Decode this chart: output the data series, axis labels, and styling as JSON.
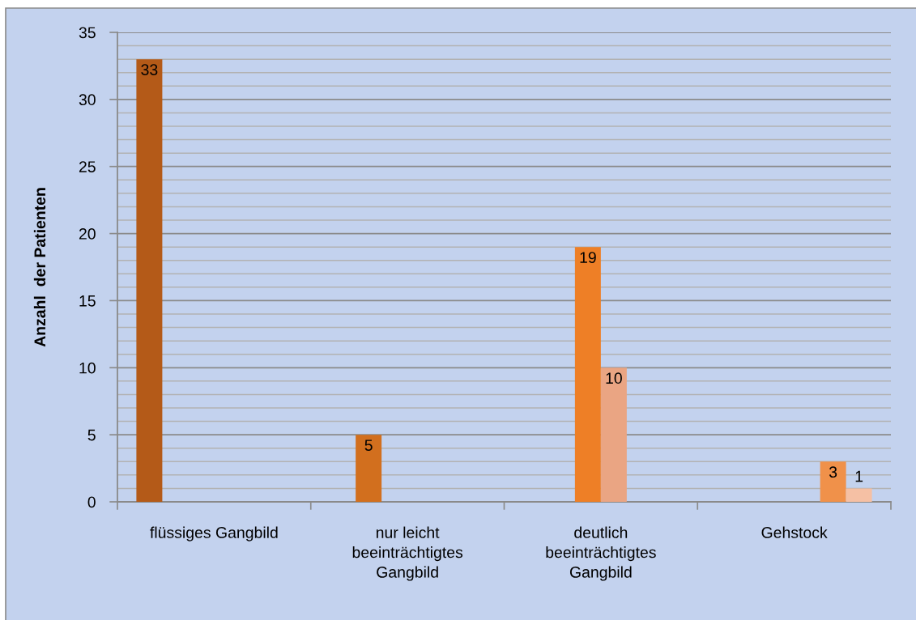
{
  "chart_data": {
    "type": "bar",
    "ylabel": "Anzahl  der Patienten",
    "categories": [
      "flüssiges Gangbild",
      "nur leicht\nbeeinträchtigtes\nGangbild",
      "deutlich\nbeeinträchtigtes\nGangbild",
      "Gehstock"
    ],
    "series": [
      {
        "color": "#b45a18",
        "values": [
          33,
          null,
          null,
          null
        ]
      },
      {
        "color": "#d26f1e",
        "values": [
          null,
          5,
          null,
          null
        ]
      },
      {
        "color": "#ee7f26",
        "values": [
          null,
          null,
          19,
          null
        ]
      },
      {
        "color": "#eaa583",
        "values": [
          null,
          null,
          10,
          null
        ]
      },
      {
        "color": "#f0914a",
        "values": [
          null,
          null,
          null,
          3
        ]
      },
      {
        "color": "#f5c0a4",
        "values": [
          null,
          null,
          null,
          1
        ]
      }
    ],
    "ylim": [
      0,
      35
    ],
    "yticks": [
      0,
      {
        "value": 1,
        "label": null
      },
      {
        "value": 2,
        "label": null
      },
      {
        "value": 3,
        "label": null
      },
      {
        "value": 4,
        "label": null
      },
      5,
      {
        "value": 6,
        "label": null
      },
      {
        "value": 7,
        "label": null
      },
      {
        "value": 8,
        "label": null
      },
      {
        "value": 9,
        "label": null
      },
      10,
      {
        "value": 11,
        "label": null
      },
      {
        "value": 12,
        "label": null
      },
      {
        "value": 13,
        "label": null
      },
      {
        "value": 14,
        "label": null
      },
      15,
      {
        "value": 16,
        "label": null
      },
      {
        "value": 17,
        "label": null
      },
      {
        "value": 18,
        "label": null
      },
      {
        "value": 19,
        "label": null
      },
      20,
      {
        "value": 21,
        "label": null
      },
      {
        "value": 22,
        "label": null
      },
      {
        "value": 23,
        "label": null
      },
      {
        "value": 24,
        "label": null
      },
      25,
      {
        "value": 26,
        "label": null
      },
      {
        "value": 27,
        "label": null
      },
      {
        "value": 28,
        "label": null
      },
      {
        "value": 29,
        "label": null
      },
      30,
      {
        "value": 31,
        "label": null
      },
      {
        "value": 32,
        "label": null
      },
      {
        "value": 33,
        "label": null
      },
      {
        "value": 34,
        "label": null
      },
      35
    ],
    "grid": "y",
    "data_labels": true
  }
}
